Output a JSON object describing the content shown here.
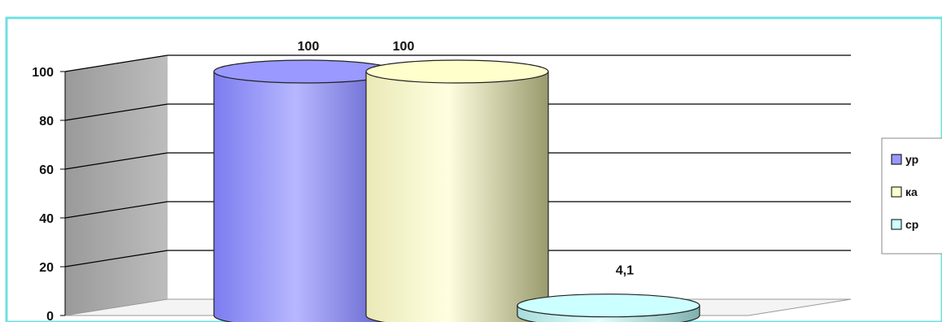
{
  "chart_data": {
    "type": "bar",
    "style": "3d-cylinder",
    "title": "",
    "xlabel": "",
    "ylabel": "",
    "ylim": [
      0,
      100
    ],
    "yticks": [
      "0",
      "20",
      "40",
      "60",
      "80",
      "100"
    ],
    "grid": true,
    "legend_position": "right",
    "series": [
      {
        "name": "ур",
        "value": 100,
        "label": "100",
        "color": "#9999ff"
      },
      {
        "name": "ка",
        "value": 100,
        "label": "100",
        "color": "#ffffcc"
      },
      {
        "name": "ср",
        "value": 4.1,
        "label": "4,1",
        "color": "#ccffff"
      }
    ]
  }
}
